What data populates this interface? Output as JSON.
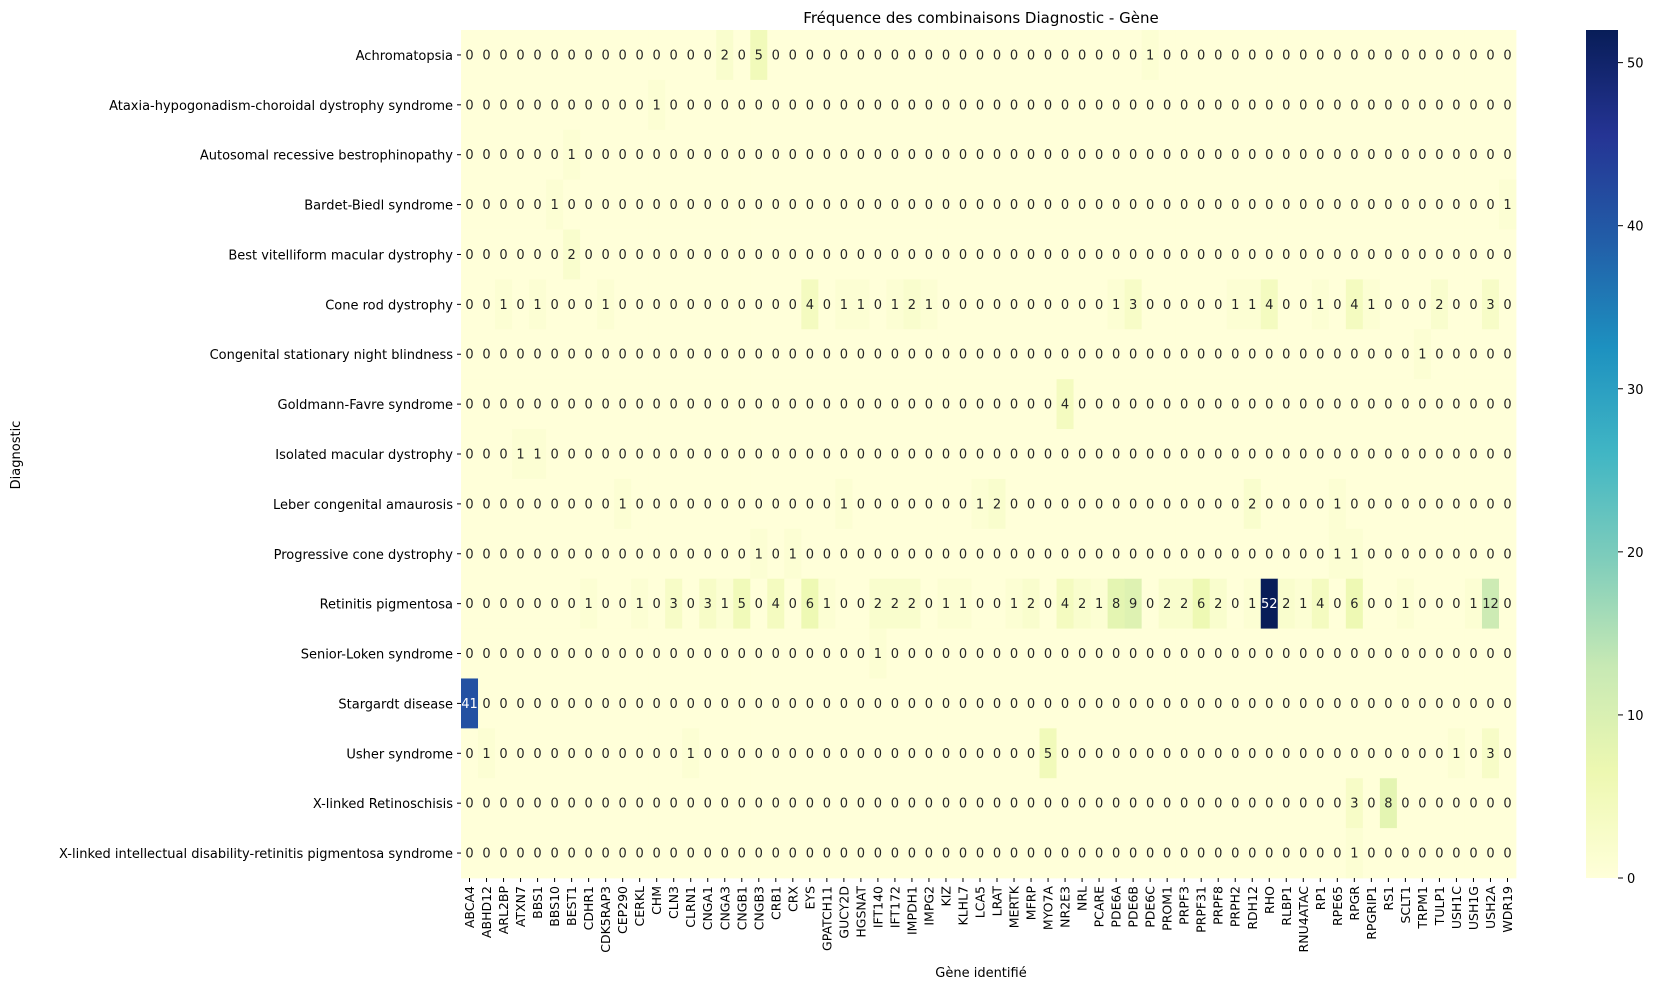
{
  "chart_data": {
    "type": "heatmap",
    "title": "Fréquence des combinaisons Diagnostic - Gène",
    "xlabel": "Gène identifié",
    "ylabel": "Diagnostic",
    "colormap": "YlGnBu",
    "colorbar": {
      "min": 0,
      "max": 52,
      "ticks": [
        0,
        10,
        20,
        30,
        40,
        50
      ]
    },
    "x": [
      "ABCA4",
      "ABHD12",
      "ARL2BP",
      "ATXN7",
      "BBS1",
      "BBS10",
      "BEST1",
      "CDHR1",
      "CDK5RAP3",
      "CEP290",
      "CERKL",
      "CHM",
      "CLN3",
      "CLRN1",
      "CNGA1",
      "CNGA3",
      "CNGB1",
      "CNGB3",
      "CRB1",
      "CRX",
      "EYS",
      "GPATCH11",
      "GUCY2D",
      "HGSNAT",
      "IFT140",
      "IFT172",
      "IMPDH1",
      "IMPG2",
      "KIZ",
      "KLHL7",
      "LCA5",
      "LRAT",
      "MERTK",
      "MFRP",
      "MYO7A",
      "NR2E3",
      "NRL",
      "PCARE",
      "PDE6A",
      "PDE6B",
      "PDE6C",
      "PROM1",
      "PRPF3",
      "PRPF31",
      "PRPF8",
      "PRPH2",
      "RDH12",
      "RHO",
      "RLBP1",
      "RNU4ATAC",
      "RP1",
      "RPE65",
      "RPGR",
      "RPGRIP1",
      "RS1",
      "SCLT1",
      "TRPM1",
      "TULP1",
      "USH1C",
      "USH1G",
      "USH2A",
      "WDR19"
    ],
    "y": [
      "Achromatopsia",
      "Ataxia-hypogonadism-choroidal dystrophy syndrome",
      "Autosomal recessive bestrophinopathy",
      "Bardet-Biedl syndrome",
      "Best vitelliform macular dystrophy",
      "Cone rod dystrophy",
      "Congenital stationary night blindness",
      "Goldmann-Favre syndrome",
      "Isolated macular dystrophy",
      "Leber congenital amaurosis",
      "Progressive cone dystrophy",
      "Retinitis pigmentosa",
      "Senior-Loken syndrome",
      "Stargardt disease",
      "Usher syndrome",
      "X-linked Retinoschisis",
      "X-linked intellectual disability-retinitis pigmentosa syndrome"
    ],
    "values": [
      [
        0,
        0,
        0,
        0,
        0,
        0,
        0,
        0,
        0,
        0,
        0,
        0,
        0,
        0,
        0,
        2,
        0,
        5,
        0,
        0,
        0,
        0,
        0,
        0,
        0,
        0,
        0,
        0,
        0,
        0,
        0,
        0,
        0,
        0,
        0,
        0,
        0,
        0,
        0,
        0,
        1,
        0,
        0,
        0,
        0,
        0,
        0,
        0,
        0,
        0,
        0,
        0,
        0,
        0,
        0,
        0,
        0,
        0,
        0,
        0,
        0,
        0
      ],
      [
        0,
        0,
        0,
        0,
        0,
        0,
        0,
        0,
        0,
        0,
        0,
        1,
        0,
        0,
        0,
        0,
        0,
        0,
        0,
        0,
        0,
        0,
        0,
        0,
        0,
        0,
        0,
        0,
        0,
        0,
        0,
        0,
        0,
        0,
        0,
        0,
        0,
        0,
        0,
        0,
        0,
        0,
        0,
        0,
        0,
        0,
        0,
        0,
        0,
        0,
        0,
        0,
        0,
        0,
        0,
        0,
        0,
        0,
        0,
        0,
        0,
        0
      ],
      [
        0,
        0,
        0,
        0,
        0,
        0,
        1,
        0,
        0,
        0,
        0,
        0,
        0,
        0,
        0,
        0,
        0,
        0,
        0,
        0,
        0,
        0,
        0,
        0,
        0,
        0,
        0,
        0,
        0,
        0,
        0,
        0,
        0,
        0,
        0,
        0,
        0,
        0,
        0,
        0,
        0,
        0,
        0,
        0,
        0,
        0,
        0,
        0,
        0,
        0,
        0,
        0,
        0,
        0,
        0,
        0,
        0,
        0,
        0,
        0,
        0,
        0
      ],
      [
        0,
        0,
        0,
        0,
        0,
        1,
        0,
        0,
        0,
        0,
        0,
        0,
        0,
        0,
        0,
        0,
        0,
        0,
        0,
        0,
        0,
        0,
        0,
        0,
        0,
        0,
        0,
        0,
        0,
        0,
        0,
        0,
        0,
        0,
        0,
        0,
        0,
        0,
        0,
        0,
        0,
        0,
        0,
        0,
        0,
        0,
        0,
        0,
        0,
        0,
        0,
        0,
        0,
        0,
        0,
        0,
        0,
        0,
        0,
        0,
        0,
        1
      ],
      [
        0,
        0,
        0,
        0,
        0,
        0,
        2,
        0,
        0,
        0,
        0,
        0,
        0,
        0,
        0,
        0,
        0,
        0,
        0,
        0,
        0,
        0,
        0,
        0,
        0,
        0,
        0,
        0,
        0,
        0,
        0,
        0,
        0,
        0,
        0,
        0,
        0,
        0,
        0,
        0,
        0,
        0,
        0,
        0,
        0,
        0,
        0,
        0,
        0,
        0,
        0,
        0,
        0,
        0,
        0,
        0,
        0,
        0,
        0,
        0,
        0,
        0
      ],
      [
        0,
        0,
        1,
        0,
        1,
        0,
        0,
        0,
        1,
        0,
        0,
        0,
        0,
        0,
        0,
        0,
        0,
        0,
        0,
        0,
        4,
        0,
        1,
        1,
        0,
        1,
        2,
        1,
        0,
        0,
        0,
        0,
        0,
        0,
        0,
        0,
        0,
        0,
        1,
        3,
        0,
        0,
        0,
        0,
        0,
        1,
        1,
        4,
        0,
        0,
        1,
        0,
        4,
        1,
        0,
        0,
        0,
        2,
        0,
        0,
        3,
        0
      ],
      [
        0,
        0,
        0,
        0,
        0,
        0,
        0,
        0,
        0,
        0,
        0,
        0,
        0,
        0,
        0,
        0,
        0,
        0,
        0,
        0,
        0,
        0,
        0,
        0,
        0,
        0,
        0,
        0,
        0,
        0,
        0,
        0,
        0,
        0,
        0,
        0,
        0,
        0,
        0,
        0,
        0,
        0,
        0,
        0,
        0,
        0,
        0,
        0,
        0,
        0,
        0,
        0,
        0,
        0,
        0,
        0,
        1,
        0,
        0,
        0,
        0,
        0
      ],
      [
        0,
        0,
        0,
        0,
        0,
        0,
        0,
        0,
        0,
        0,
        0,
        0,
        0,
        0,
        0,
        0,
        0,
        0,
        0,
        0,
        0,
        0,
        0,
        0,
        0,
        0,
        0,
        0,
        0,
        0,
        0,
        0,
        0,
        0,
        0,
        4,
        0,
        0,
        0,
        0,
        0,
        0,
        0,
        0,
        0,
        0,
        0,
        0,
        0,
        0,
        0,
        0,
        0,
        0,
        0,
        0,
        0,
        0,
        0,
        0,
        0,
        0
      ],
      [
        0,
        0,
        0,
        1,
        1,
        0,
        0,
        0,
        0,
        0,
        0,
        0,
        0,
        0,
        0,
        0,
        0,
        0,
        0,
        0,
        0,
        0,
        0,
        0,
        0,
        0,
        0,
        0,
        0,
        0,
        0,
        0,
        0,
        0,
        0,
        0,
        0,
        0,
        0,
        0,
        0,
        0,
        0,
        0,
        0,
        0,
        0,
        0,
        0,
        0,
        0,
        0,
        0,
        0,
        0,
        0,
        0,
        0,
        0,
        0,
        0,
        0
      ],
      [
        0,
        0,
        0,
        0,
        0,
        0,
        0,
        0,
        0,
        1,
        0,
        0,
        0,
        0,
        0,
        0,
        0,
        0,
        0,
        0,
        0,
        0,
        1,
        0,
        0,
        0,
        0,
        0,
        0,
        0,
        1,
        2,
        0,
        0,
        0,
        0,
        0,
        0,
        0,
        0,
        0,
        0,
        0,
        0,
        0,
        0,
        2,
        0,
        0,
        0,
        0,
        1,
        0,
        0,
        0,
        0,
        0,
        0,
        0,
        0,
        0,
        0
      ],
      [
        0,
        0,
        0,
        0,
        0,
        0,
        0,
        0,
        0,
        0,
        0,
        0,
        0,
        0,
        0,
        0,
        0,
        1,
        0,
        1,
        0,
        0,
        0,
        0,
        0,
        0,
        0,
        0,
        0,
        0,
        0,
        0,
        0,
        0,
        0,
        0,
        0,
        0,
        0,
        0,
        0,
        0,
        0,
        0,
        0,
        0,
        0,
        0,
        0,
        0,
        0,
        1,
        1,
        0,
        0,
        0,
        0,
        0,
        0,
        0,
        0,
        0
      ],
      [
        0,
        0,
        0,
        0,
        0,
        0,
        0,
        1,
        0,
        0,
        1,
        0,
        3,
        0,
        3,
        1,
        5,
        0,
        4,
        0,
        6,
        1,
        0,
        0,
        2,
        2,
        2,
        0,
        1,
        1,
        0,
        0,
        1,
        2,
        0,
        4,
        2,
        1,
        8,
        9,
        0,
        2,
        2,
        6,
        2,
        0,
        1,
        52,
        2,
        1,
        4,
        0,
        6,
        0,
        0,
        1,
        0,
        0,
        0,
        1,
        12,
        0
      ],
      [
        0,
        0,
        0,
        0,
        0,
        0,
        0,
        0,
        0,
        0,
        0,
        0,
        0,
        0,
        0,
        0,
        0,
        0,
        0,
        0,
        0,
        0,
        0,
        0,
        1,
        0,
        0,
        0,
        0,
        0,
        0,
        0,
        0,
        0,
        0,
        0,
        0,
        0,
        0,
        0,
        0,
        0,
        0,
        0,
        0,
        0,
        0,
        0,
        0,
        0,
        0,
        0,
        0,
        0,
        0,
        0,
        0,
        0,
        0,
        0,
        0,
        0
      ],
      [
        41,
        0,
        0,
        0,
        0,
        0,
        0,
        0,
        0,
        0,
        0,
        0,
        0,
        0,
        0,
        0,
        0,
        0,
        0,
        0,
        0,
        0,
        0,
        0,
        0,
        0,
        0,
        0,
        0,
        0,
        0,
        0,
        0,
        0,
        0,
        0,
        0,
        0,
        0,
        0,
        0,
        0,
        0,
        0,
        0,
        0,
        0,
        0,
        0,
        0,
        0,
        0,
        0,
        0,
        0,
        0,
        0,
        0,
        0,
        0,
        0,
        0
      ],
      [
        0,
        1,
        0,
        0,
        0,
        0,
        0,
        0,
        0,
        0,
        0,
        0,
        0,
        1,
        0,
        0,
        0,
        0,
        0,
        0,
        0,
        0,
        0,
        0,
        0,
        0,
        0,
        0,
        0,
        0,
        0,
        0,
        0,
        0,
        5,
        0,
        0,
        0,
        0,
        0,
        0,
        0,
        0,
        0,
        0,
        0,
        0,
        0,
        0,
        0,
        0,
        0,
        0,
        0,
        0,
        0,
        0,
        0,
        1,
        0,
        3,
        0
      ],
      [
        0,
        0,
        0,
        0,
        0,
        0,
        0,
        0,
        0,
        0,
        0,
        0,
        0,
        0,
        0,
        0,
        0,
        0,
        0,
        0,
        0,
        0,
        0,
        0,
        0,
        0,
        0,
        0,
        0,
        0,
        0,
        0,
        0,
        0,
        0,
        0,
        0,
        0,
        0,
        0,
        0,
        0,
        0,
        0,
        0,
        0,
        0,
        0,
        0,
        0,
        0,
        0,
        3,
        0,
        8,
        0,
        0,
        0,
        0,
        0,
        0,
        0
      ],
      [
        0,
        0,
        0,
        0,
        0,
        0,
        0,
        0,
        0,
        0,
        0,
        0,
        0,
        0,
        0,
        0,
        0,
        0,
        0,
        0,
        0,
        0,
        0,
        0,
        0,
        0,
        0,
        0,
        0,
        0,
        0,
        0,
        0,
        0,
        0,
        0,
        0,
        0,
        0,
        0,
        0,
        0,
        0,
        0,
        0,
        0,
        0,
        0,
        0,
        0,
        0,
        0,
        1,
        0,
        0,
        0,
        0,
        0,
        0,
        0,
        0,
        0
      ]
    ]
  }
}
